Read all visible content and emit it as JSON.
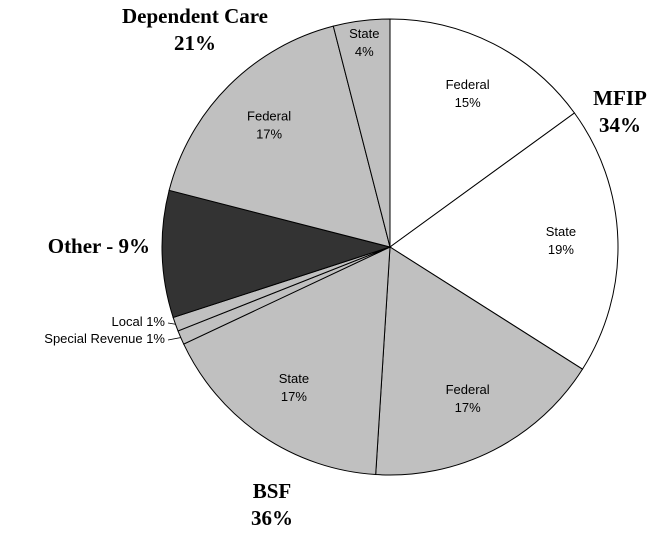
{
  "chart_data": {
    "type": "pie",
    "categories": [
      "Federal",
      "State",
      "Federal",
      "State",
      "Special Revenue",
      "Local",
      "Other",
      "Federal",
      "State"
    ],
    "values": [
      15,
      19,
      17,
      17,
      1,
      1,
      9,
      17,
      4
    ],
    "value_labels": [
      "15%",
      "19%",
      "17%",
      "17%",
      "1%",
      "1%",
      "9%",
      "17%",
      "4%"
    ],
    "colors": [
      "#ffffff",
      "#ffffff",
      "#c0c0c0",
      "#c0c0c0",
      "#c0c0c0",
      "#c0c0c0",
      "#333333",
      "#c0c0c0",
      "#c0c0c0"
    ],
    "groups": [
      {
        "name": "MFIP",
        "value": 34,
        "value_label": "34%"
      },
      {
        "name": "BSF",
        "value": 36,
        "value_label": "36%"
      },
      {
        "name": "Other - 9%",
        "value": 9
      },
      {
        "name": "Dependent Care",
        "value": 21,
        "value_label": "21%"
      }
    ]
  }
}
